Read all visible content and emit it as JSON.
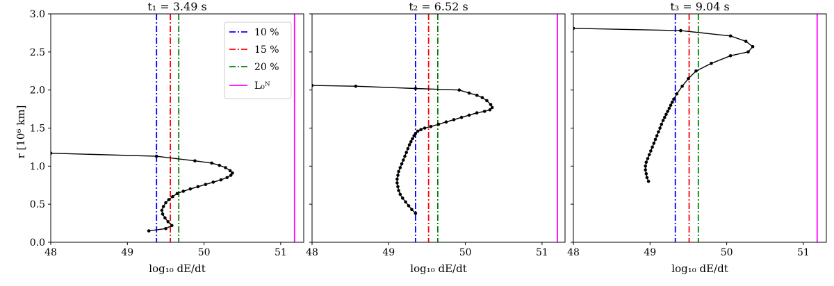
{
  "figure": {
    "ylabel": "r [10⁶ km]",
    "xlabel": "log₁₀ dE/dt"
  },
  "legend": {
    "entries": [
      {
        "label": "10 %",
        "color": "#0000ff",
        "style": "dashdot"
      },
      {
        "label": "15 %",
        "color": "#ff0000",
        "style": "dashdot"
      },
      {
        "label": "20 %",
        "color": "#008000",
        "style": "dashdot"
      },
      {
        "label": "L₀ᴺ",
        "color": "#ff00ff",
        "style": "solid"
      }
    ],
    "placement": "upper-right of first panel"
  },
  "colors": {
    "curve": "#000000",
    "line_10": "#0000ff",
    "line_15": "#ff0000",
    "line_20": "#008000",
    "line_L0N": "#ff00ff"
  },
  "chart_data": [
    {
      "type": "line",
      "title": "t₁ = 3.49 s",
      "xlabel": "log₁₀ dE/dt",
      "ylabel": "r [10⁶ km]",
      "xlim": [
        48.0,
        51.3
      ],
      "ylim": [
        0.0,
        3.0
      ],
      "xticks": [
        48,
        49,
        50,
        51
      ],
      "yticks": [
        0.0,
        0.5,
        1.0,
        1.5,
        2.0,
        2.5,
        3.0
      ],
      "grid": false,
      "vlines": {
        "10 %": 49.38,
        "15 %": 49.56,
        "20 %": 49.67,
        "L₀ᴺ": 51.18
      },
      "series": [
        {
          "x": [
            49.28,
            49.5,
            49.58,
            49.53,
            49.49,
            49.46,
            49.45,
            49.47,
            49.5,
            49.54,
            49.59,
            49.65,
            49.73,
            49.82,
            49.92,
            50.02,
            50.12,
            50.22,
            50.3,
            50.35,
            50.37,
            50.34,
            50.28,
            50.2,
            50.1,
            49.88,
            49.38,
            48.0
          ],
          "y": [
            0.15,
            0.18,
            0.22,
            0.27,
            0.32,
            0.37,
            0.42,
            0.47,
            0.52,
            0.56,
            0.6,
            0.64,
            0.67,
            0.7,
            0.73,
            0.76,
            0.79,
            0.82,
            0.85,
            0.88,
            0.91,
            0.94,
            0.98,
            1.01,
            1.04,
            1.07,
            1.13,
            1.17
          ]
        }
      ]
    },
    {
      "type": "line",
      "title": "t₂ = 6.52 s",
      "xlabel": "log₁₀ dE/dt",
      "ylabel": "",
      "xlim": [
        48.0,
        51.3
      ],
      "ylim": [
        0.0,
        3.0
      ],
      "xticks": [
        48,
        49,
        50,
        51
      ],
      "yticks": [
        0.0,
        0.5,
        1.0,
        1.5,
        2.0,
        2.5,
        3.0
      ],
      "grid": false,
      "vlines": {
        "10 %": 49.35,
        "15 %": 49.52,
        "20 %": 49.64,
        "L₀ᴺ": 51.2
      },
      "series": [
        {
          "x": [
            49.35,
            49.3,
            49.26,
            49.22,
            49.18,
            49.15,
            49.13,
            49.12,
            49.11,
            49.11,
            49.12,
            49.13,
            49.15,
            49.17,
            49.19,
            49.21,
            49.23,
            49.25,
            49.27,
            49.29,
            49.31,
            49.33,
            49.35,
            49.38,
            49.42,
            49.47,
            49.55,
            49.65,
            49.75,
            49.85,
            49.95,
            50.05,
            50.15,
            50.25,
            50.32,
            50.35,
            50.33,
            50.28,
            50.22,
            50.15,
            50.05,
            49.92,
            49.35,
            48.57,
            48.0
          ],
          "y": [
            0.38,
            0.43,
            0.48,
            0.53,
            0.58,
            0.63,
            0.68,
            0.73,
            0.78,
            0.83,
            0.88,
            0.93,
            0.98,
            1.03,
            1.08,
            1.13,
            1.18,
            1.23,
            1.28,
            1.32,
            1.36,
            1.4,
            1.43,
            1.46,
            1.48,
            1.5,
            1.52,
            1.55,
            1.58,
            1.61,
            1.64,
            1.67,
            1.7,
            1.72,
            1.74,
            1.77,
            1.81,
            1.86,
            1.9,
            1.93,
            1.96,
            2.0,
            2.02,
            2.05,
            2.06
          ]
        }
      ]
    },
    {
      "type": "line",
      "title": "t₃ = 9.04 s",
      "xlabel": "log₁₀ dE/dt",
      "ylabel": "",
      "xlim": [
        48.0,
        51.3
      ],
      "ylim": [
        0.0,
        3.0
      ],
      "xticks": [
        48,
        49,
        50,
        51
      ],
      "yticks": [
        0.0,
        0.5,
        1.0,
        1.5,
        2.0,
        2.5,
        3.0
      ],
      "grid": false,
      "vlines": {
        "10 %": 49.33,
        "15 %": 49.51,
        "20 %": 49.63,
        "L₀ᴺ": 51.18
      },
      "series": [
        {
          "x": [
            48.98,
            48.96,
            48.95,
            48.94,
            48.94,
            48.95,
            48.97,
            48.99,
            49.01,
            49.03,
            49.05,
            49.07,
            49.09,
            49.11,
            49.13,
            49.15,
            49.17,
            49.19,
            49.21,
            49.23,
            49.25,
            49.27,
            49.29,
            49.31,
            49.35,
            49.42,
            49.5,
            49.6,
            49.8,
            50.05,
            50.28,
            50.34,
            50.25,
            50.05,
            49.4,
            48.0
          ],
          "y": [
            0.8,
            0.85,
            0.9,
            0.95,
            1.0,
            1.05,
            1.1,
            1.15,
            1.2,
            1.25,
            1.3,
            1.35,
            1.4,
            1.45,
            1.5,
            1.55,
            1.6,
            1.64,
            1.68,
            1.72,
            1.76,
            1.8,
            1.84,
            1.88,
            1.95,
            2.05,
            2.15,
            2.25,
            2.35,
            2.45,
            2.5,
            2.57,
            2.64,
            2.71,
            2.78,
            2.81
          ]
        }
      ]
    }
  ]
}
